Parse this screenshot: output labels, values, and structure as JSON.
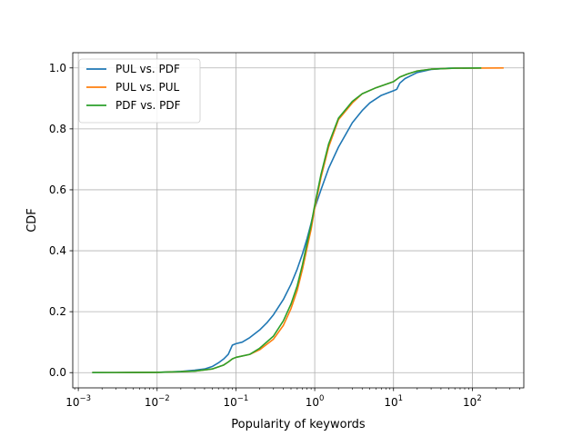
{
  "chart_data": {
    "type": "line",
    "title": "",
    "xlabel": "Popularity of keywords",
    "ylabel": "CDF",
    "xscale": "log",
    "xlim": [
      0.00085,
      450
    ],
    "ylim": [
      -0.05,
      1.05
    ],
    "x_ticks": [
      {
        "base": "10",
        "exp": "−3",
        "value": 0.001
      },
      {
        "base": "10",
        "exp": "−2",
        "value": 0.01
      },
      {
        "base": "10",
        "exp": "−1",
        "value": 0.1
      },
      {
        "base": "10",
        "exp": "0",
        "value": 1
      },
      {
        "base": "10",
        "exp": "1",
        "value": 10
      },
      {
        "base": "10",
        "exp": "2",
        "value": 100
      }
    ],
    "y_ticks": [
      {
        "label": "0.0",
        "value": 0.0
      },
      {
        "label": "0.2",
        "value": 0.2
      },
      {
        "label": "0.4",
        "value": 0.4
      },
      {
        "label": "0.6",
        "value": 0.6
      },
      {
        "label": "0.8",
        "value": 0.8
      },
      {
        "label": "1.0",
        "value": 1.0
      }
    ],
    "grid": true,
    "legend_position": "top-left",
    "series": [
      {
        "name": "PUL vs. PDF",
        "color": "#1f77b4",
        "points": [
          [
            0.0015,
            0.0
          ],
          [
            0.005,
            0.0005
          ],
          [
            0.01,
            0.001
          ],
          [
            0.02,
            0.004
          ],
          [
            0.03,
            0.008
          ],
          [
            0.04,
            0.012
          ],
          [
            0.05,
            0.02
          ],
          [
            0.06,
            0.032
          ],
          [
            0.07,
            0.045
          ],
          [
            0.08,
            0.06
          ],
          [
            0.09,
            0.09
          ],
          [
            0.1,
            0.095
          ],
          [
            0.12,
            0.1
          ],
          [
            0.15,
            0.115
          ],
          [
            0.2,
            0.14
          ],
          [
            0.25,
            0.165
          ],
          [
            0.3,
            0.19
          ],
          [
            0.4,
            0.24
          ],
          [
            0.5,
            0.29
          ],
          [
            0.6,
            0.34
          ],
          [
            0.7,
            0.39
          ],
          [
            0.8,
            0.44
          ],
          [
            0.9,
            0.49
          ],
          [
            1.0,
            0.54
          ],
          [
            1.2,
            0.6
          ],
          [
            1.5,
            0.67
          ],
          [
            2.0,
            0.74
          ],
          [
            3.0,
            0.82
          ],
          [
            4.0,
            0.86
          ],
          [
            5.0,
            0.885
          ],
          [
            7.0,
            0.91
          ],
          [
            10.0,
            0.925
          ],
          [
            11.0,
            0.93
          ],
          [
            12.0,
            0.95
          ],
          [
            14.0,
            0.965
          ],
          [
            20.0,
            0.985
          ],
          [
            30.0,
            0.995
          ],
          [
            50.0,
            0.999
          ],
          [
            130.0,
            1.0
          ]
        ]
      },
      {
        "name": "PUL vs. PUL",
        "color": "#ff7f0e",
        "points": [
          [
            0.0015,
            0.0
          ],
          [
            0.005,
            0.0005
          ],
          [
            0.01,
            0.001
          ],
          [
            0.02,
            0.003
          ],
          [
            0.03,
            0.005
          ],
          [
            0.05,
            0.012
          ],
          [
            0.07,
            0.025
          ],
          [
            0.08,
            0.035
          ],
          [
            0.09,
            0.045
          ],
          [
            0.1,
            0.05
          ],
          [
            0.15,
            0.06
          ],
          [
            0.2,
            0.075
          ],
          [
            0.3,
            0.11
          ],
          [
            0.4,
            0.155
          ],
          [
            0.5,
            0.21
          ],
          [
            0.6,
            0.27
          ],
          [
            0.7,
            0.34
          ],
          [
            0.8,
            0.41
          ],
          [
            0.9,
            0.47
          ],
          [
            1.0,
            0.54
          ],
          [
            1.2,
            0.64
          ],
          [
            1.5,
            0.74
          ],
          [
            2.0,
            0.83
          ],
          [
            3.0,
            0.885
          ],
          [
            4.0,
            0.915
          ],
          [
            6.0,
            0.935
          ],
          [
            10.0,
            0.955
          ],
          [
            12.0,
            0.97
          ],
          [
            15.0,
            0.98
          ],
          [
            20.0,
            0.99
          ],
          [
            30.0,
            0.996
          ],
          [
            60.0,
            0.999
          ],
          [
            250.0,
            1.0
          ]
        ]
      },
      {
        "name": "PDF vs. PDF",
        "color": "#2ca02c",
        "points": [
          [
            0.0015,
            0.0
          ],
          [
            0.005,
            0.0005
          ],
          [
            0.01,
            0.001
          ],
          [
            0.02,
            0.003
          ],
          [
            0.03,
            0.005
          ],
          [
            0.05,
            0.012
          ],
          [
            0.07,
            0.025
          ],
          [
            0.08,
            0.035
          ],
          [
            0.09,
            0.045
          ],
          [
            0.1,
            0.05
          ],
          [
            0.15,
            0.06
          ],
          [
            0.2,
            0.08
          ],
          [
            0.3,
            0.12
          ],
          [
            0.4,
            0.17
          ],
          [
            0.5,
            0.225
          ],
          [
            0.6,
            0.285
          ],
          [
            0.7,
            0.355
          ],
          [
            0.8,
            0.425
          ],
          [
            0.9,
            0.485
          ],
          [
            1.0,
            0.55
          ],
          [
            1.2,
            0.65
          ],
          [
            1.5,
            0.75
          ],
          [
            2.0,
            0.835
          ],
          [
            3.0,
            0.89
          ],
          [
            4.0,
            0.915
          ],
          [
            6.0,
            0.935
          ],
          [
            10.0,
            0.955
          ],
          [
            12.0,
            0.97
          ],
          [
            15.0,
            0.98
          ],
          [
            20.0,
            0.99
          ],
          [
            30.0,
            0.996
          ],
          [
            60.0,
            0.999
          ],
          [
            130.0,
            1.0
          ]
        ]
      }
    ]
  }
}
